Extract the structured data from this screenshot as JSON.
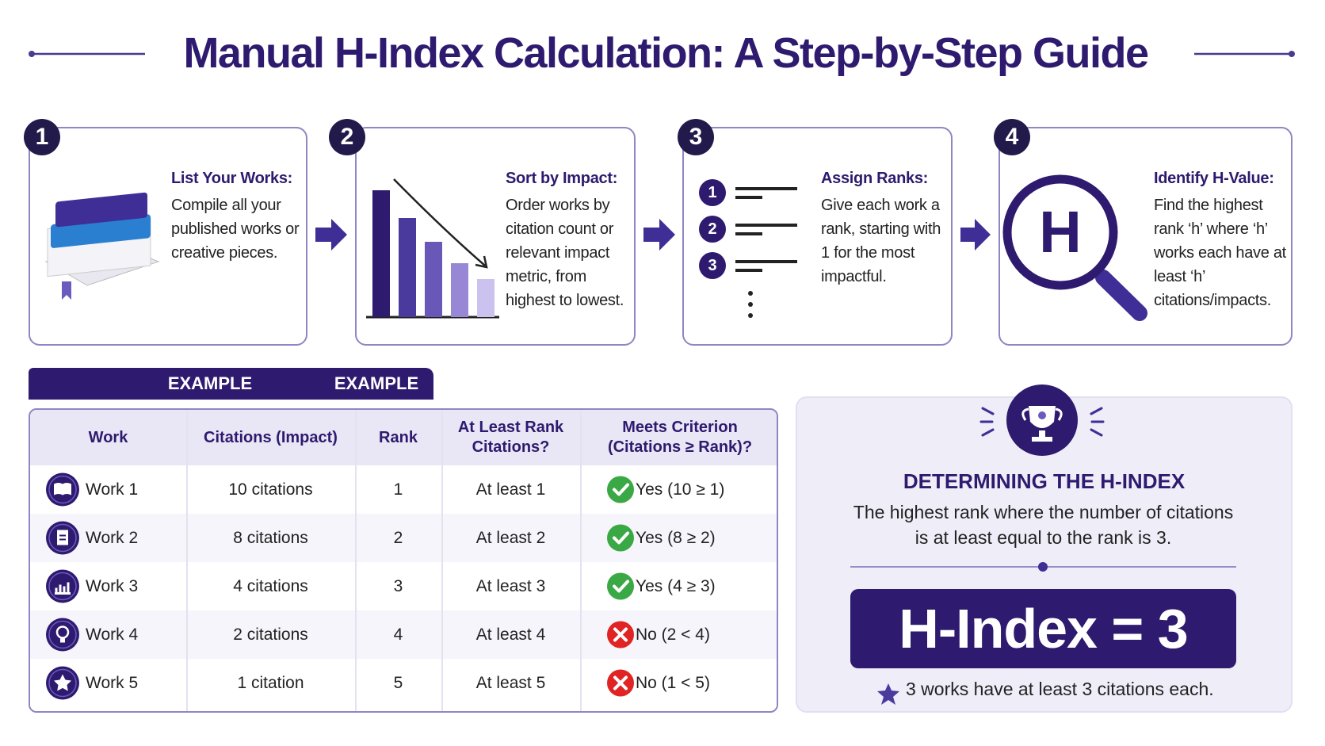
{
  "title": "Manual H-Index Calculation: A Step-by-Step Guide",
  "steps": [
    {
      "number": "1",
      "heading": "List Your Works:",
      "text": "Compile all your published works or creative pieces."
    },
    {
      "number": "2",
      "heading": "Sort by Impact:",
      "text": "Order works by citation count or relevant impact metric, from highest to lowest."
    },
    {
      "number": "3",
      "heading": "Assign Ranks:",
      "text": "Give each work a rank, starting with 1 for the most impactful.",
      "icon_labels": [
        "1",
        "2",
        "3"
      ]
    },
    {
      "number": "4",
      "heading": "Identify H-Value:",
      "text": "Find the highest rank ‘h’ where ‘h’ works each have at least ‘h’ citations/impacts.",
      "icon_label": "H"
    }
  ],
  "example_tabs": [
    "EXAMPLE",
    "EXAMPLE"
  ],
  "table": {
    "columns": [
      "Work",
      "Citations (Impact)",
      "Rank",
      "At Least Rank Citations?",
      "Meets Criterion (Citations ≥ Rank)?"
    ],
    "rows": [
      {
        "cells": [
          "Work 1",
          "10 citations",
          "1",
          "At least 1",
          "Yes (10 ≥ 1)"
        ],
        "icon": "check"
      },
      {
        "cells": [
          "Work 2",
          "8 citations",
          "2",
          "At least 2",
          "Yes (8 ≥ 2)"
        ],
        "icon": "check"
      },
      {
        "cells": [
          "Work 3",
          "4 citations",
          "3",
          "At least 3",
          "Yes (4 ≥ 3)"
        ],
        "icon": "check"
      },
      {
        "cells": [
          "Work 4",
          "2 citations",
          "4",
          "At least 4",
          "No (2 < 4)"
        ],
        "icon": "cross"
      },
      {
        "cells": [
          "Work 5",
          "1 citation",
          "5",
          "At least 5",
          "No (1 < 5)"
        ],
        "icon": "cross"
      }
    ]
  },
  "result": {
    "heading": "DETERMINING THE H-INDEX",
    "text": "The highest rank where the number of citations is at least equal to the rank is 3.",
    "h_index": "H-Index = 3",
    "note": "3 works have at least 3 citations each."
  }
}
